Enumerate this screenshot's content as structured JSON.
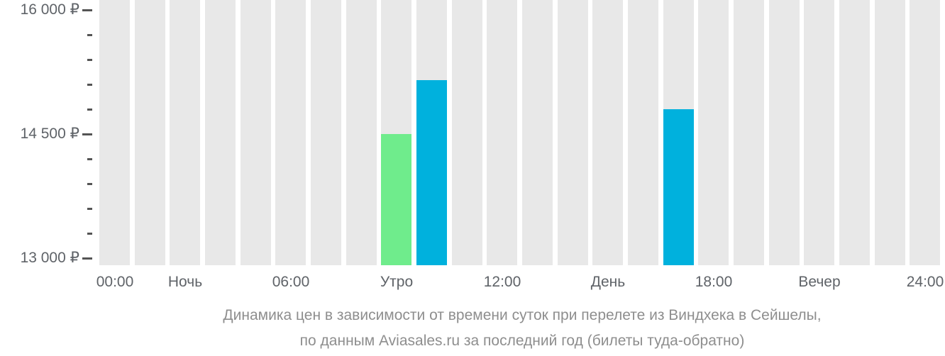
{
  "chart_data": {
    "type": "bar",
    "title": "Динамика цен в зависимости от времени суток при перелете из Виндхека в Сейшелы, по данным Aviasales.ru за последний год (билеты туда-обратно)",
    "title_line1": "Динамика цен в зависимости от времени суток при перелете из Виндхека в Сейшелы,",
    "title_line2": "по данным Aviasales.ru за последний год (билеты туда-обратно)",
    "currency_unit": "₽",
    "hours_total": 24,
    "y_axis": {
      "major_ticks": [
        {
          "value": 16000,
          "label": "16 000 ₽"
        },
        {
          "value": 14500,
          "label": "14 500 ₽"
        },
        {
          "value": 13000,
          "label": "13 000 ₽"
        }
      ],
      "minor_tick_step": 300,
      "range": [
        13000,
        16000
      ],
      "grid": false
    },
    "x_axis": {
      "labels": [
        {
          "text": "00:00",
          "slot": 0
        },
        {
          "text": "Ночь",
          "slot": 2
        },
        {
          "text": "06:00",
          "slot": 5
        },
        {
          "text": "Утро",
          "slot": 8
        },
        {
          "text": "12:00",
          "slot": 11
        },
        {
          "text": "День",
          "slot": 14
        },
        {
          "text": "18:00",
          "slot": 17
        },
        {
          "text": "Вечер",
          "slot": 20
        },
        {
          "text": "24:00",
          "slot": 23
        }
      ]
    },
    "bars": [
      {
        "hour": 8,
        "time": "08:00",
        "value": 14500,
        "role": "min"
      },
      {
        "hour": 9,
        "time": "09:00",
        "value": 15150,
        "role": "regular"
      },
      {
        "hour": 16,
        "time": "16:00",
        "value": 14800,
        "role": "regular"
      }
    ],
    "colors": {
      "min_price_bar": "#6fec8c",
      "regular_price_bar": "#00b1dd",
      "placeholder_bar": "#e8e8e8",
      "axis_text": "#5f6368",
      "caption_text": "#8e8e8e",
      "tick": "#545454"
    },
    "legend": "none"
  }
}
